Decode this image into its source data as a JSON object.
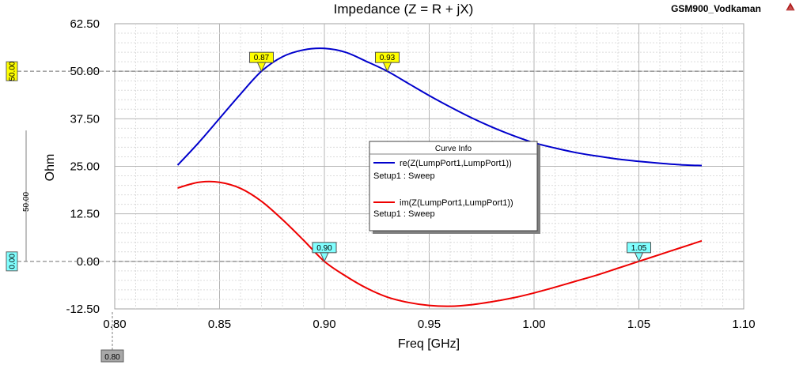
{
  "header": {
    "project_name": "GSM900_Vodkaman",
    "logo": "ansys-triangle-icon"
  },
  "chart_data": {
    "type": "line",
    "title": "Impedance (Z = R + jX)",
    "xlabel": "Freq [GHz]",
    "ylabel": "Ohm",
    "xlim": [
      0.8,
      1.1
    ],
    "ylim": [
      -12.5,
      62.5
    ],
    "xticks": [
      "0.80",
      "0.85",
      "0.90",
      "0.95",
      "1.00",
      "1.05",
      "1.10"
    ],
    "yticks": [
      "62.50",
      "50.00",
      "37.50",
      "25.00",
      "12.50",
      "0.00",
      "-12.50"
    ],
    "grid": true,
    "series": [
      {
        "name": "re(Z(LumpPort1,LumpPort1))",
        "setup": "Setup1 : Sweep",
        "color": "#0000cc",
        "x": [
          0.83,
          0.84,
          0.85,
          0.86,
          0.87,
          0.88,
          0.89,
          0.9,
          0.91,
          0.92,
          0.93,
          0.94,
          0.95,
          0.96,
          0.97,
          0.98,
          0.99,
          1.0,
          1.01,
          1.02,
          1.03,
          1.04,
          1.05,
          1.06,
          1.07,
          1.08
        ],
        "y": [
          25.3,
          31.2,
          37.6,
          44.0,
          50.0,
          53.8,
          55.6,
          56.0,
          55.0,
          52.6,
          50.0,
          46.8,
          43.6,
          40.6,
          37.8,
          35.3,
          33.1,
          31.2,
          29.8,
          28.6,
          27.7,
          26.9,
          26.3,
          25.8,
          25.4,
          25.2
        ]
      },
      {
        "name": "im(Z(LumpPort1,LumpPort1))",
        "setup": "Setup1 : Sweep",
        "color": "#ee0000",
        "x": [
          0.83,
          0.84,
          0.85,
          0.86,
          0.87,
          0.88,
          0.89,
          0.9,
          0.91,
          0.92,
          0.93,
          0.94,
          0.95,
          0.96,
          0.97,
          0.98,
          0.99,
          1.0,
          1.01,
          1.02,
          1.03,
          1.04,
          1.05,
          1.06,
          1.07,
          1.08
        ],
        "y": [
          19.3,
          20.8,
          20.8,
          19.2,
          15.8,
          11.0,
          5.6,
          0.0,
          -3.8,
          -7.0,
          -9.4,
          -10.8,
          -11.6,
          -11.8,
          -11.4,
          -10.6,
          -9.6,
          -8.3,
          -6.8,
          -5.2,
          -3.6,
          -1.8,
          0.0,
          1.8,
          3.6,
          5.4
        ]
      }
    ],
    "markers": [
      {
        "label": "0.87",
        "x": 0.87,
        "y": 50.0,
        "color": "#ffff00"
      },
      {
        "label": "0.93",
        "x": 0.93,
        "y": 50.0,
        "color": "#ffff00"
      },
      {
        "label": "0.90",
        "x": 0.9,
        "y": 0.0,
        "color": "#80ffff"
      },
      {
        "label": "1.05",
        "x": 1.05,
        "y": 0.0,
        "color": "#80ffff"
      }
    ],
    "reference_lines": [
      {
        "label": "50.00",
        "y": 50.0,
        "color": "#ffff00"
      },
      {
        "label": "0.00",
        "y": 0.0,
        "color": "#80ffff"
      }
    ],
    "delta_label": "50.00",
    "x_cursor_label": "0.80",
    "legend_title": "Curve Info",
    "legend_position": "center-right"
  }
}
